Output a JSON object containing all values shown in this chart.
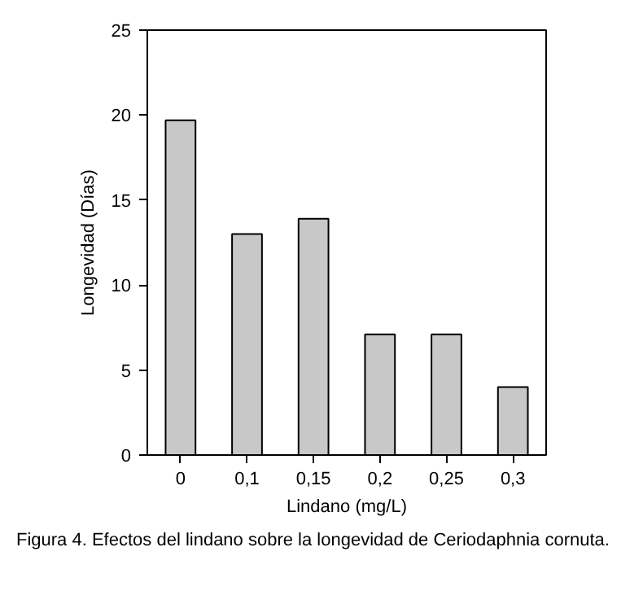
{
  "chart_data": {
    "type": "bar",
    "xlabel": "Lindano (mg/L)",
    "ylabel": "Longevidad (Días)",
    "categories": [
      "0",
      "0,1",
      "0,15",
      "0,2",
      "0,25",
      "0,3"
    ],
    "values": [
      19.7,
      13.0,
      13.9,
      7.1,
      7.1,
      4.0
    ],
    "color": "#c8c8c8",
    "ylim": [
      0,
      25
    ],
    "yticks": [
      0,
      5,
      10,
      15,
      20,
      25
    ],
    "grid": false,
    "annotations": [
      "Figura 4. Efectos del lindano sobre la longevidad de Ceriodaphnia cornuta."
    ]
  }
}
